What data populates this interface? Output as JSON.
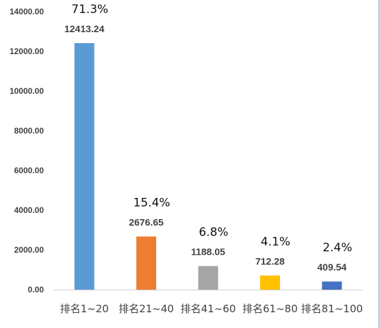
{
  "chart_data": {
    "type": "bar",
    "categories": [
      "排名1~20",
      "排名21~40",
      "排名41~60",
      "排名61~80",
      "排名81~100"
    ],
    "values": [
      12413.24,
      2676.65,
      1188.05,
      712.28,
      409.54
    ],
    "value_labels": [
      "12413.24",
      "2676.65",
      "1188.05",
      "712.28",
      "409.54"
    ],
    "percent_labels": [
      "71.3%",
      "15.4%",
      "6.8%",
      "4.1%",
      "2.4%"
    ],
    "colors": [
      "#5b9bd5",
      "#ed7d31",
      "#a5a5a5",
      "#ffc000",
      "#4472c4"
    ],
    "ylim": [
      0,
      14000
    ],
    "y_ticks": [
      0,
      2000,
      4000,
      6000,
      8000,
      10000,
      12000,
      14000
    ],
    "y_tick_labels": [
      "0.00",
      "2000.00",
      "4000.00",
      "6000.00",
      "8000.00",
      "10000.00",
      "12000.00",
      "14000.00"
    ],
    "grid": false,
    "legend": "none",
    "title": "",
    "xlabel": "",
    "ylabel": ""
  }
}
